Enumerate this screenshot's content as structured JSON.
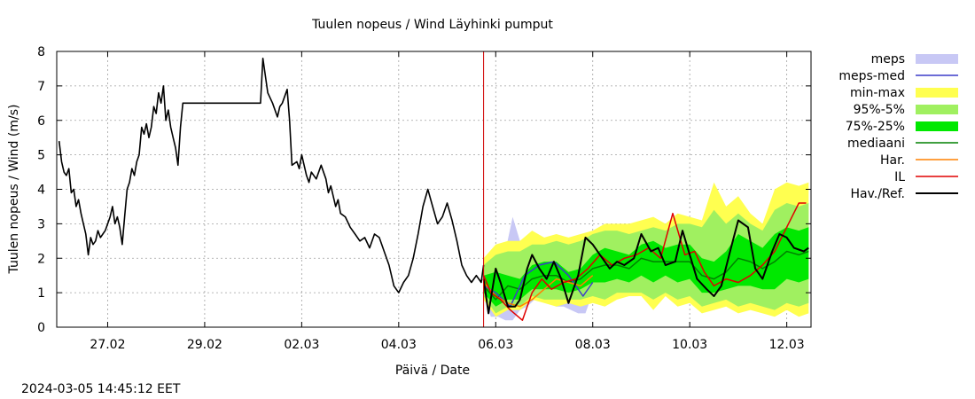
{
  "chart_data": {
    "type": "line",
    "title": "Tuulen nopeus / Wind  Läyhinki pumput",
    "xlabel": "Päivä / Date",
    "ylabel": "Tuulen nopeus / Wind (m/s)",
    "ylim": [
      0,
      8
    ],
    "xlim": [
      -0.05,
      15.5
    ],
    "y_ticks": [
      0,
      1,
      2,
      3,
      4,
      5,
      6,
      7,
      8
    ],
    "x_ticks": [
      {
        "x": 1,
        "label": "27.02"
      },
      {
        "x": 3,
        "label": "29.02"
      },
      {
        "x": 5,
        "label": "02.03"
      },
      {
        "x": 7,
        "label": "04.03"
      },
      {
        "x": 9,
        "label": "06.03"
      },
      {
        "x": 11,
        "label": "08.03"
      },
      {
        "x": 13,
        "label": "10.03"
      },
      {
        "x": 15,
        "label": "12.03"
      }
    ],
    "x_note": "x = days since 26.02 00:00",
    "grid": true,
    "forecast_start_x": 8.75,
    "timestamp": "2024-03-05 14:45:12 EET",
    "legend": [
      {
        "key": "meps",
        "label": "meps",
        "kind": "band",
        "color": "#c8c8f5"
      },
      {
        "key": "meps_med",
        "label": "meps-med",
        "kind": "line",
        "color": "#3c3cc8"
      },
      {
        "key": "minmax",
        "label": "min-max",
        "kind": "band",
        "color": "#ffff50"
      },
      {
        "key": "p95_5",
        "label": "95%-5%",
        "kind": "band",
        "color": "#a0f060"
      },
      {
        "key": "p75_25",
        "label": "75%-25%",
        "kind": "band",
        "color": "#00e800"
      },
      {
        "key": "median",
        "label": "mediaani",
        "kind": "line",
        "color": "#008000"
      },
      {
        "key": "har",
        "label": "Har.",
        "kind": "line",
        "color": "#ff8000"
      },
      {
        "key": "il",
        "label": "IL",
        "kind": "line",
        "color": "#e00000"
      },
      {
        "key": "obs",
        "label": "Hav./Ref.",
        "kind": "line",
        "color": "#000000"
      }
    ],
    "series": {
      "obs_history": {
        "x": [
          0,
          0.05,
          0.1,
          0.15,
          0.2,
          0.25,
          0.3,
          0.35,
          0.4,
          0.45,
          0.5,
          0.55,
          0.6,
          0.65,
          0.7,
          0.75,
          0.8,
          0.85,
          0.9,
          0.95,
          1.0,
          1.05,
          1.1,
          1.15,
          1.2,
          1.25,
          1.3,
          1.35,
          1.4,
          1.45,
          1.5,
          1.55,
          1.6,
          1.65,
          1.7,
          1.75,
          1.8,
          1.85,
          1.9,
          1.95,
          2.0,
          2.05,
          2.1,
          2.15,
          2.2,
          2.25,
          2.3,
          2.35,
          2.4,
          2.45,
          2.5,
          2.55,
          2.6,
          2.65,
          2.7,
          2.75,
          2.8,
          2.85,
          2.9,
          2.95,
          3.0,
          3.05,
          3.1,
          3.8,
          4.15,
          4.2,
          4.3,
          4.4,
          4.5,
          4.55,
          4.6,
          4.7,
          4.75,
          4.8,
          4.9,
          4.95,
          5.0,
          5.05,
          5.1,
          5.15,
          5.2,
          5.3,
          5.4,
          5.5,
          5.55,
          5.6,
          5.7,
          5.75,
          5.8,
          5.9,
          6.0,
          6.1,
          6.2,
          6.3,
          6.4,
          6.5,
          6.6,
          6.7,
          6.8,
          6.9,
          7.0,
          7.1,
          7.2,
          7.3,
          7.4,
          7.5,
          7.6,
          7.7,
          7.8,
          7.9,
          8.0,
          8.1,
          8.2,
          8.3,
          8.4,
          8.5,
          8.6,
          8.7,
          8.75
        ],
        "y": [
          5.4,
          4.8,
          4.5,
          4.4,
          4.6,
          3.9,
          4.0,
          3.5,
          3.7,
          3.3,
          3.0,
          2.7,
          2.1,
          2.6,
          2.4,
          2.5,
          2.8,
          2.6,
          2.7,
          2.8,
          3.0,
          3.2,
          3.5,
          3.0,
          3.2,
          2.9,
          2.4,
          3.2,
          4.0,
          4.2,
          4.6,
          4.4,
          4.8,
          5.0,
          5.8,
          5.6,
          5.9,
          5.5,
          5.8,
          6.4,
          6.2,
          6.8,
          6.5,
          7.0,
          6.0,
          6.3,
          5.8,
          5.5,
          5.2,
          4.7,
          5.8,
          6.5,
          6.5,
          6.5,
          6.5,
          6.5,
          6.5,
          6.5,
          6.5,
          6.5,
          6.5,
          6.5,
          6.5,
          6.5,
          6.5,
          7.8,
          6.8,
          6.5,
          6.1,
          6.4,
          6.5,
          6.9,
          6.0,
          4.7,
          4.8,
          4.6,
          5.0,
          4.7,
          4.4,
          4.2,
          4.5,
          4.3,
          4.7,
          4.3,
          3.9,
          4.1,
          3.5,
          3.7,
          3.3,
          3.2,
          2.9,
          2.7,
          2.5,
          2.6,
          2.3,
          2.7,
          2.6,
          2.2,
          1.8,
          1.2,
          1.0,
          1.3,
          1.5,
          2.0,
          2.7,
          3.5,
          4.0,
          3.5,
          3.0,
          3.2,
          3.6,
          3.1,
          2.5,
          1.8,
          1.5,
          1.3,
          1.5,
          1.3,
          1.8
        ]
      },
      "obs_forecast": {
        "x": [
          8.75,
          8.85,
          9.0,
          9.1,
          9.25,
          9.4,
          9.5,
          9.65,
          9.75,
          9.9,
          10.05,
          10.2,
          10.35,
          10.5,
          10.7,
          10.85,
          11.0,
          11.15,
          11.35,
          11.5,
          11.65,
          11.85,
          12.0,
          12.2,
          12.35,
          12.5,
          12.7,
          12.85,
          13.0,
          13.15,
          13.35,
          13.5,
          13.65,
          13.85,
          14.0,
          14.2,
          14.35,
          14.5,
          14.7,
          14.85,
          15.0,
          15.15,
          15.35,
          15.45
        ],
        "y": [
          1.4,
          0.4,
          1.7,
          1.3,
          0.6,
          0.6,
          0.8,
          1.7,
          2.1,
          1.7,
          1.4,
          1.9,
          1.4,
          0.7,
          1.5,
          2.6,
          2.4,
          2.1,
          1.7,
          1.9,
          1.8,
          2.0,
          2.7,
          2.2,
          2.3,
          1.8,
          1.9,
          2.8,
          2.1,
          1.4,
          1.1,
          0.9,
          1.2,
          2.3,
          3.1,
          2.9,
          1.7,
          1.4,
          2.2,
          2.7,
          2.6,
          2.3,
          2.2,
          2.3
        ]
      },
      "meps_med": {
        "x": [
          8.75,
          9.0,
          9.3,
          9.6,
          9.9,
          10.2,
          10.5,
          10.8,
          11.0
        ],
        "y": [
          1.2,
          1.0,
          0.6,
          1.5,
          1.8,
          1.9,
          1.5,
          0.9,
          1.3
        ]
      },
      "meps": {
        "x": [
          8.75,
          8.9,
          9.05,
          9.2,
          9.35,
          9.5,
          9.65,
          9.8,
          9.95,
          10.1,
          10.25,
          10.4,
          10.55,
          10.7,
          10.85,
          11.0
        ],
        "hi": [
          1.8,
          1.6,
          2.3,
          2.2,
          3.2,
          2.5,
          2.3,
          2.4,
          2.2,
          2.1,
          2.2,
          2.4,
          2.2,
          1.9,
          1.5,
          1.4
        ],
        "lo": [
          0.9,
          0.3,
          0.3,
          0.2,
          0.2,
          0.5,
          0.6,
          0.8,
          0.9,
          0.7,
          0.6,
          0.6,
          0.5,
          0.4,
          0.4,
          1.0
        ]
      },
      "minmax": {
        "x": [
          8.75,
          9.0,
          9.25,
          9.5,
          9.75,
          10.0,
          10.25,
          10.5,
          10.75,
          11.0,
          11.25,
          11.5,
          11.75,
          12.0,
          12.25,
          12.5,
          12.75,
          13.0,
          13.25,
          13.5,
          13.75,
          14.0,
          14.25,
          14.5,
          14.75,
          15.0,
          15.25,
          15.45
        ],
        "hi": [
          2.0,
          2.4,
          2.5,
          2.5,
          2.8,
          2.6,
          2.7,
          2.6,
          2.7,
          2.8,
          3.0,
          3.0,
          3.0,
          3.1,
          3.2,
          3.0,
          3.3,
          3.2,
          3.1,
          4.2,
          3.5,
          3.8,
          3.3,
          3.0,
          4.0,
          4.2,
          4.1,
          4.2
        ],
        "lo": [
          0.8,
          0.3,
          0.5,
          0.5,
          0.8,
          0.7,
          0.6,
          0.7,
          0.6,
          0.7,
          0.6,
          0.8,
          0.9,
          0.9,
          0.5,
          0.9,
          0.6,
          0.7,
          0.4,
          0.5,
          0.6,
          0.4,
          0.5,
          0.4,
          0.3,
          0.5,
          0.3,
          0.4
        ]
      },
      "p95_5": {
        "x": [
          8.75,
          9.0,
          9.25,
          9.5,
          9.75,
          10.0,
          10.25,
          10.5,
          10.75,
          11.0,
          11.25,
          11.5,
          11.75,
          12.0,
          12.25,
          12.5,
          12.75,
          13.0,
          13.25,
          13.5,
          13.75,
          14.0,
          14.25,
          14.5,
          14.75,
          15.0,
          15.25,
          15.45
        ],
        "hi": [
          1.8,
          2.1,
          2.2,
          2.2,
          2.4,
          2.4,
          2.5,
          2.4,
          2.5,
          2.7,
          2.8,
          2.8,
          2.7,
          2.8,
          2.9,
          2.8,
          3.0,
          3.0,
          2.9,
          3.4,
          3.0,
          3.3,
          3.0,
          2.8,
          3.4,
          3.6,
          3.5,
          3.6
        ],
        "lo": [
          0.9,
          0.4,
          0.6,
          0.6,
          0.9,
          0.8,
          0.8,
          0.8,
          0.8,
          0.9,
          0.8,
          1.0,
          1.0,
          1.0,
          0.8,
          1.0,
          0.8,
          0.9,
          0.6,
          0.7,
          0.8,
          0.6,
          0.7,
          0.6,
          0.5,
          0.7,
          0.6,
          0.7
        ]
      },
      "p75_25": {
        "x": [
          8.75,
          9.0,
          9.25,
          9.5,
          9.75,
          10.0,
          10.25,
          10.5,
          10.75,
          11.0,
          11.25,
          11.5,
          11.75,
          12.0,
          12.25,
          12.5,
          12.75,
          13.0,
          13.25,
          13.5,
          13.75,
          14.0,
          14.25,
          14.5,
          14.75,
          15.0,
          15.25,
          15.45
        ],
        "hi": [
          1.5,
          1.6,
          1.5,
          1.4,
          1.8,
          1.9,
          1.9,
          1.6,
          1.7,
          2.1,
          2.3,
          2.2,
          2.1,
          2.4,
          2.5,
          2.3,
          2.4,
          2.4,
          2.0,
          1.9,
          2.2,
          2.7,
          2.5,
          2.3,
          2.7,
          2.9,
          2.8,
          2.9
        ],
        "lo": [
          1.0,
          0.6,
          0.8,
          0.8,
          1.1,
          1.1,
          1.1,
          1.0,
          1.1,
          1.3,
          1.3,
          1.4,
          1.3,
          1.5,
          1.3,
          1.5,
          1.3,
          1.4,
          1.0,
          1.0,
          1.1,
          1.2,
          1.2,
          1.1,
          1.1,
          1.4,
          1.3,
          1.4
        ]
      },
      "median": {
        "x": [
          8.75,
          9.0,
          9.25,
          9.5,
          9.75,
          10.0,
          10.25,
          10.5,
          10.75,
          11.0,
          11.25,
          11.5,
          11.75,
          12.0,
          12.25,
          12.5,
          12.75,
          13.0,
          13.25,
          13.5,
          13.75,
          14.0,
          14.25,
          14.5,
          14.75,
          15.0,
          15.25,
          15.45
        ],
        "y": [
          1.2,
          0.8,
          1.2,
          1.1,
          1.4,
          1.5,
          1.5,
          1.3,
          1.4,
          1.7,
          1.8,
          1.8,
          1.7,
          2.0,
          1.9,
          1.9,
          1.9,
          1.9,
          1.5,
          1.4,
          1.6,
          2.0,
          1.9,
          1.7,
          1.9,
          2.2,
          2.1,
          2.2
        ]
      },
      "har": {
        "x": [
          8.75,
          9.0,
          9.25,
          9.5,
          9.75,
          10.0,
          10.25,
          10.5,
          10.75,
          11.0
        ],
        "y": [
          1.3,
          0.9,
          0.7,
          0.6,
          0.8,
          1.1,
          1.4,
          1.3,
          1.2,
          1.5
        ]
      },
      "il": {
        "x": [
          8.75,
          8.9,
          9.1,
          9.3,
          9.55,
          9.75,
          9.95,
          10.15,
          10.4,
          10.65,
          10.9,
          11.15,
          11.4,
          11.65,
          11.9,
          12.15,
          12.4,
          12.65,
          12.9,
          13.1,
          13.3,
          13.5,
          13.75,
          14.0,
          14.25,
          14.5,
          14.75,
          15.0,
          15.25,
          15.4
        ],
        "y": [
          1.5,
          1.0,
          0.8,
          0.5,
          0.2,
          1.0,
          1.4,
          1.1,
          1.3,
          1.4,
          1.7,
          2.1,
          1.8,
          2.0,
          2.1,
          2.3,
          2.0,
          3.3,
          2.1,
          2.2,
          1.6,
          1.2,
          1.4,
          1.3,
          1.5,
          1.8,
          2.2,
          2.9,
          3.6,
          3.6
        ]
      }
    }
  }
}
